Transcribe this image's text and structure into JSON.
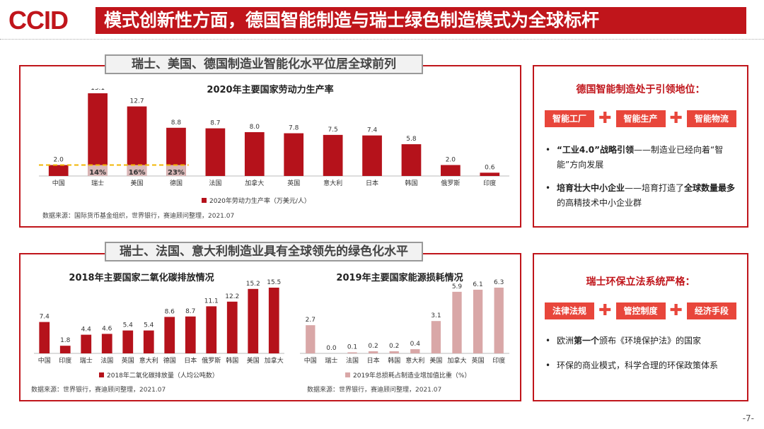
{
  "logo": "CCID",
  "header": {
    "title": "模式创新性方面，德国智能制造与瑞士绿色制造模式为全球标杆"
  },
  "sections": {
    "top_tab": "瑞士、美国、德国制造业智能化水平位居全球前列",
    "bottom_tab": "瑞士、法国、意大利制造业具有全球领先的绿色化水平"
  },
  "chart_data": [
    {
      "type": "bar",
      "title": "2020年主要国家劳动力生产率",
      "categories": [
        "中国",
        "瑞士",
        "美国",
        "德国",
        "法国",
        "加拿大",
        "英国",
        "意大利",
        "日本",
        "韩国",
        "俄罗斯",
        "印度"
      ],
      "series": [
        {
          "name": "2020年劳动力生产率（万美元/人）",
          "values": [
            2.0,
            15.1,
            12.7,
            8.8,
            8.7,
            8.0,
            7.8,
            7.5,
            7.4,
            5.8,
            2.0,
            0.6
          ]
        }
      ],
      "annotations": {
        "reference_value": 2.0,
        "ratio_labels": [
          "",
          "14%",
          "16%",
          "23%",
          "",
          "",
          "",
          "",
          "",
          "",
          "",
          ""
        ]
      },
      "color": "#b5121b",
      "ylim": [
        0,
        16
      ],
      "source": "数据来源：国际货币基金组织，世界银行，赛迪顾问整理，2021.07"
    },
    {
      "type": "bar",
      "title": "2018年主要国家二氧化碳排放情况",
      "categories": [
        "中国",
        "印度",
        "瑞士",
        "法国",
        "英国",
        "意大利",
        "德国",
        "日本",
        "俄罗斯",
        "韩国",
        "美国",
        "加拿大"
      ],
      "series": [
        {
          "name": "2018年二氧化碳排放量（人均公吨数）",
          "values": [
            7.4,
            1.8,
            4.4,
            4.6,
            5.4,
            5.4,
            8.6,
            8.7,
            11.1,
            12.2,
            15.2,
            15.5
          ]
        }
      ],
      "color": "#b5121b",
      "ylim": [
        0,
        16
      ],
      "source": "数据来源：世界银行，赛迪顾问整理，2021.07"
    },
    {
      "type": "bar",
      "title": "2019年主要国家能源损耗情况",
      "categories": [
        "中国",
        "瑞士",
        "法国",
        "日本",
        "韩国",
        "意大利",
        "美国",
        "加拿大",
        "英国",
        "印度"
      ],
      "series": [
        {
          "name": "2019年总损耗占制造业增加值比重（%）",
          "values": [
            2.7,
            0.0,
            0.1,
            0.2,
            0.2,
            0.4,
            3.1,
            5.9,
            6.1,
            6.3
          ]
        }
      ],
      "color": "#d9a7a7",
      "ylim": [
        0,
        6.5
      ],
      "source": "数据来源：世界银行，赛迪顾问整理，2021.07"
    }
  ],
  "right_top": {
    "heading": "德国智能制造处于引领地位：",
    "tags": [
      "智能工厂",
      "智能生产",
      "智能物流"
    ],
    "bullet1": {
      "q1": "“工业4.0”战略引领",
      "t1": "——制造业已经向着“智能”方向发展"
    },
    "bullet2": {
      "q1": "培育壮大中小企业",
      "t1": "——培育打造了",
      "q2": "全球数量最多",
      "t2": "的高精技术中小企业群"
    }
  },
  "right_bottom": {
    "heading": "瑞士环保立法系统严格：",
    "tags": [
      "法律法规",
      "管控制度",
      "经济手段"
    ],
    "bullet1": {
      "t1": "欧洲",
      "q1": "第一个",
      "t2": "颁布《环境保护法》的国家"
    },
    "bullet2": {
      "t1": "环保的商业模式，科学合理的环保政策体系"
    }
  },
  "page_number": "-7-",
  "icons": {
    "bullet": "bullet-dot",
    "plus": "plus-icon"
  }
}
